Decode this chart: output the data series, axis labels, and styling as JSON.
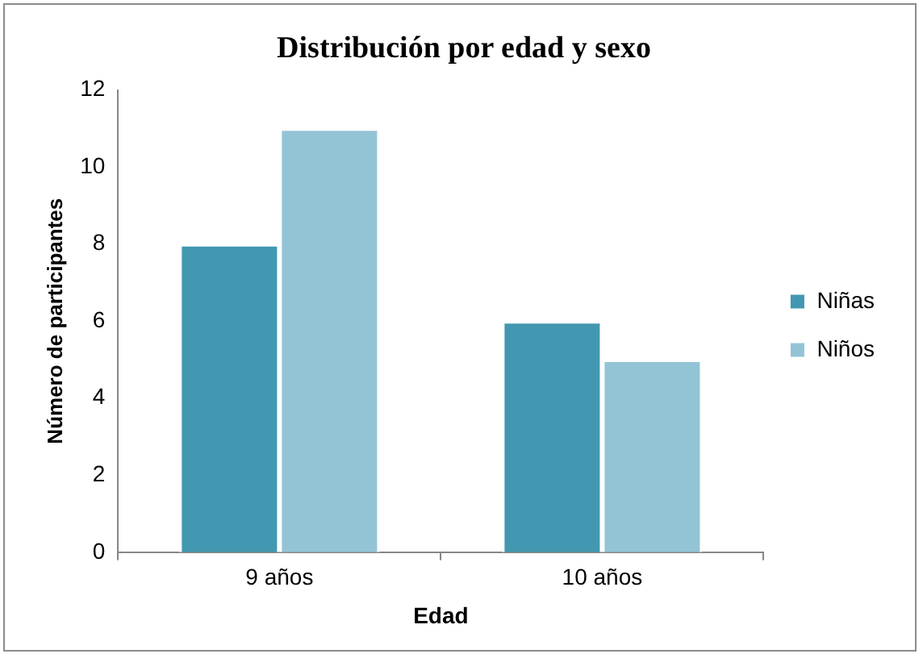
{
  "chart_data": {
    "type": "bar",
    "title": "Distribución por edad y sexo",
    "xlabel": "Edad",
    "ylabel": "Número de participantes",
    "categories": [
      "9 años",
      "10 años"
    ],
    "series": [
      {
        "name": "Niñas",
        "color": "#4298b0",
        "values": [
          8,
          6
        ]
      },
      {
        "name": "Niños",
        "color": "#93c4d6",
        "values": [
          11,
          5
        ]
      }
    ],
    "ylim": [
      0,
      12
    ],
    "yticks": [
      0,
      2,
      4,
      6,
      8,
      10,
      12
    ],
    "grid": false,
    "legend": "right"
  }
}
